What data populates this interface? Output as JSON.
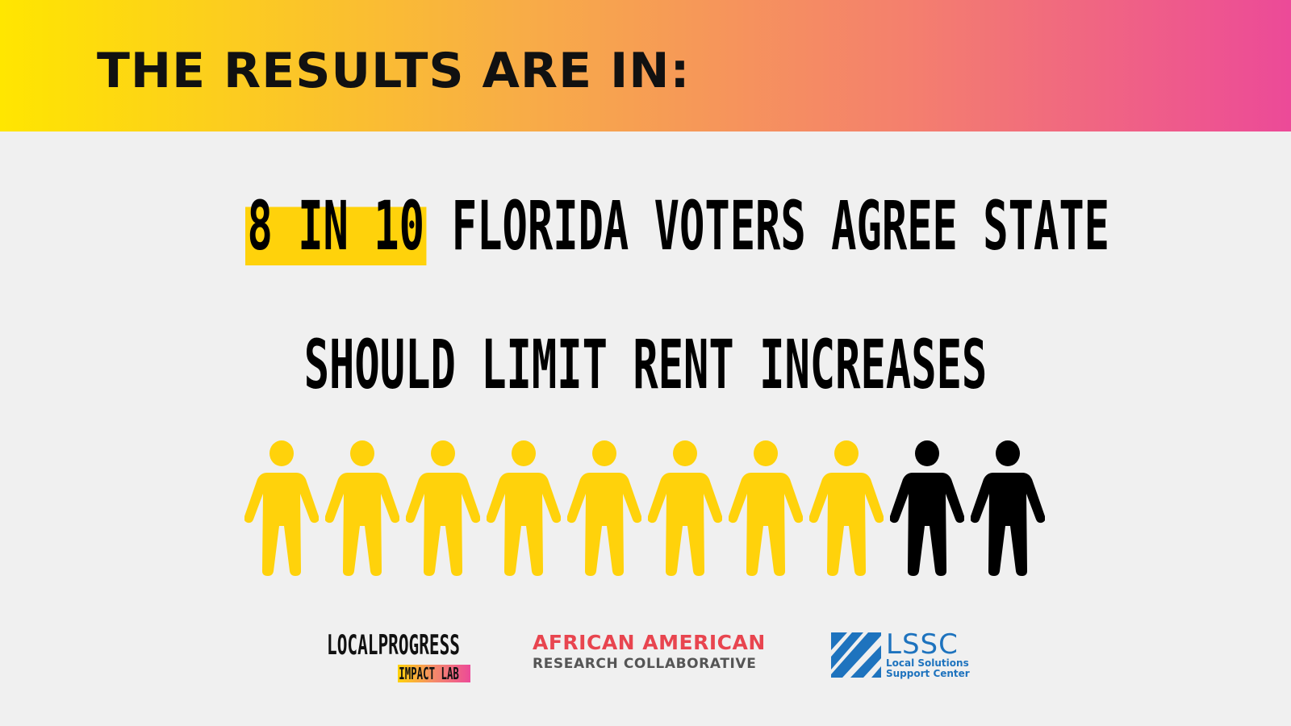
{
  "banner": {
    "title": "THE RESULTS ARE IN:"
  },
  "headline": {
    "highlight": "8 IN 10",
    "line1_rest": " FLORIDA VOTERS AGREE STATE",
    "line2": "SHOULD LIMIT RENT INCREASES"
  },
  "people_chart": {
    "total": 10,
    "agree_count": 8,
    "agree_color": "#ffd20b",
    "other_color": "#000000",
    "icon": "person-icon"
  },
  "logos": {
    "local_progress": {
      "top": "LOCALPROGRESS",
      "bottom": "IMPACT LAB"
    },
    "aarc": {
      "line1": "AFRICAN AMERICAN",
      "line2": "RESEARCH COLLABORATIVE"
    },
    "lssc": {
      "title": "LSSC",
      "line1": "Local Solutions",
      "line2": "Support Center"
    }
  },
  "colors": {
    "banner_gradient": [
      "#ffe600",
      "#f8ad46",
      "#f4806d",
      "#ec4a98"
    ],
    "highlight": "#ffd20b",
    "background": "#f0f0f0",
    "aarc_red": "#e8454f",
    "lssc_blue": "#1e73be"
  }
}
